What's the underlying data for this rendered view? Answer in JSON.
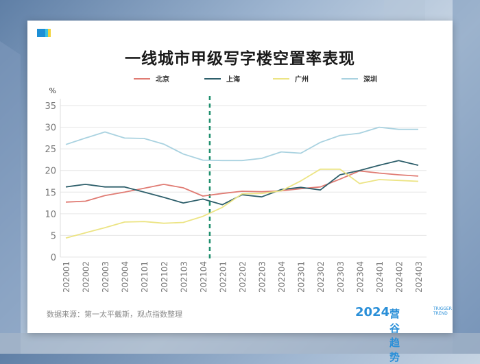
{
  "header": {
    "title": "一线城市甲级写字楼空置率表现"
  },
  "footer": {
    "source": "数据来源：第一太平戴斯，观点指数整理",
    "brand_year": "2024",
    "brand_name": "营谷趋势",
    "brand_en_1": "TRIGGER",
    "brand_en_2": "TREND"
  },
  "chart_data": {
    "type": "line",
    "title": "一线城市甲级写字楼空置率表现",
    "ylabel": "%",
    "xlabel": "",
    "ylim": [
      0,
      35
    ],
    "yticks": [
      0,
      5,
      10,
      15,
      20,
      25,
      30,
      35
    ],
    "grid": "horizontal",
    "legend": "top",
    "marker_line_after": "2021Q4",
    "categories": [
      "2020Q1",
      "2020Q2",
      "2020Q3",
      "2020Q4",
      "2021Q1",
      "2021Q2",
      "2021Q3",
      "2021Q4",
      "2022Q1",
      "2022Q2",
      "2022Q3",
      "2022Q4",
      "2023Q1",
      "2023Q2",
      "2023Q3",
      "2023Q4",
      "2024Q1",
      "2024Q2",
      "2024Q3"
    ],
    "series": [
      {
        "name": "北京",
        "color": "#e07b73",
        "values": [
          12.7,
          12.9,
          14.2,
          15.0,
          15.9,
          16.8,
          16.0,
          14.1,
          14.7,
          15.2,
          15.1,
          15.3,
          15.8,
          16.2,
          18.0,
          19.9,
          19.4,
          19.0,
          18.7
        ]
      },
      {
        "name": "上海",
        "color": "#2e5f6b",
        "values": [
          16.2,
          16.8,
          16.2,
          16.2,
          15.0,
          13.8,
          12.5,
          13.4,
          12.1,
          14.4,
          13.9,
          15.6,
          16.1,
          15.5,
          19.0,
          20.0,
          21.2,
          22.3,
          21.2
        ]
      },
      {
        "name": "广州",
        "color": "#ece484",
        "values": [
          4.4,
          5.6,
          6.8,
          8.1,
          8.2,
          7.8,
          8.0,
          9.4,
          11.5,
          14.6,
          14.7,
          15.3,
          17.6,
          20.3,
          20.3,
          17.0,
          17.9,
          17.7,
          17.5
        ]
      },
      {
        "name": "深圳",
        "color": "#a9d2e0",
        "values": [
          26.0,
          27.5,
          28.9,
          27.5,
          27.4,
          26.1,
          23.8,
          22.4,
          22.3,
          22.3,
          22.8,
          24.3,
          24.0,
          26.5,
          28.1,
          28.6,
          30.0,
          29.5,
          29.5
        ]
      }
    ]
  }
}
